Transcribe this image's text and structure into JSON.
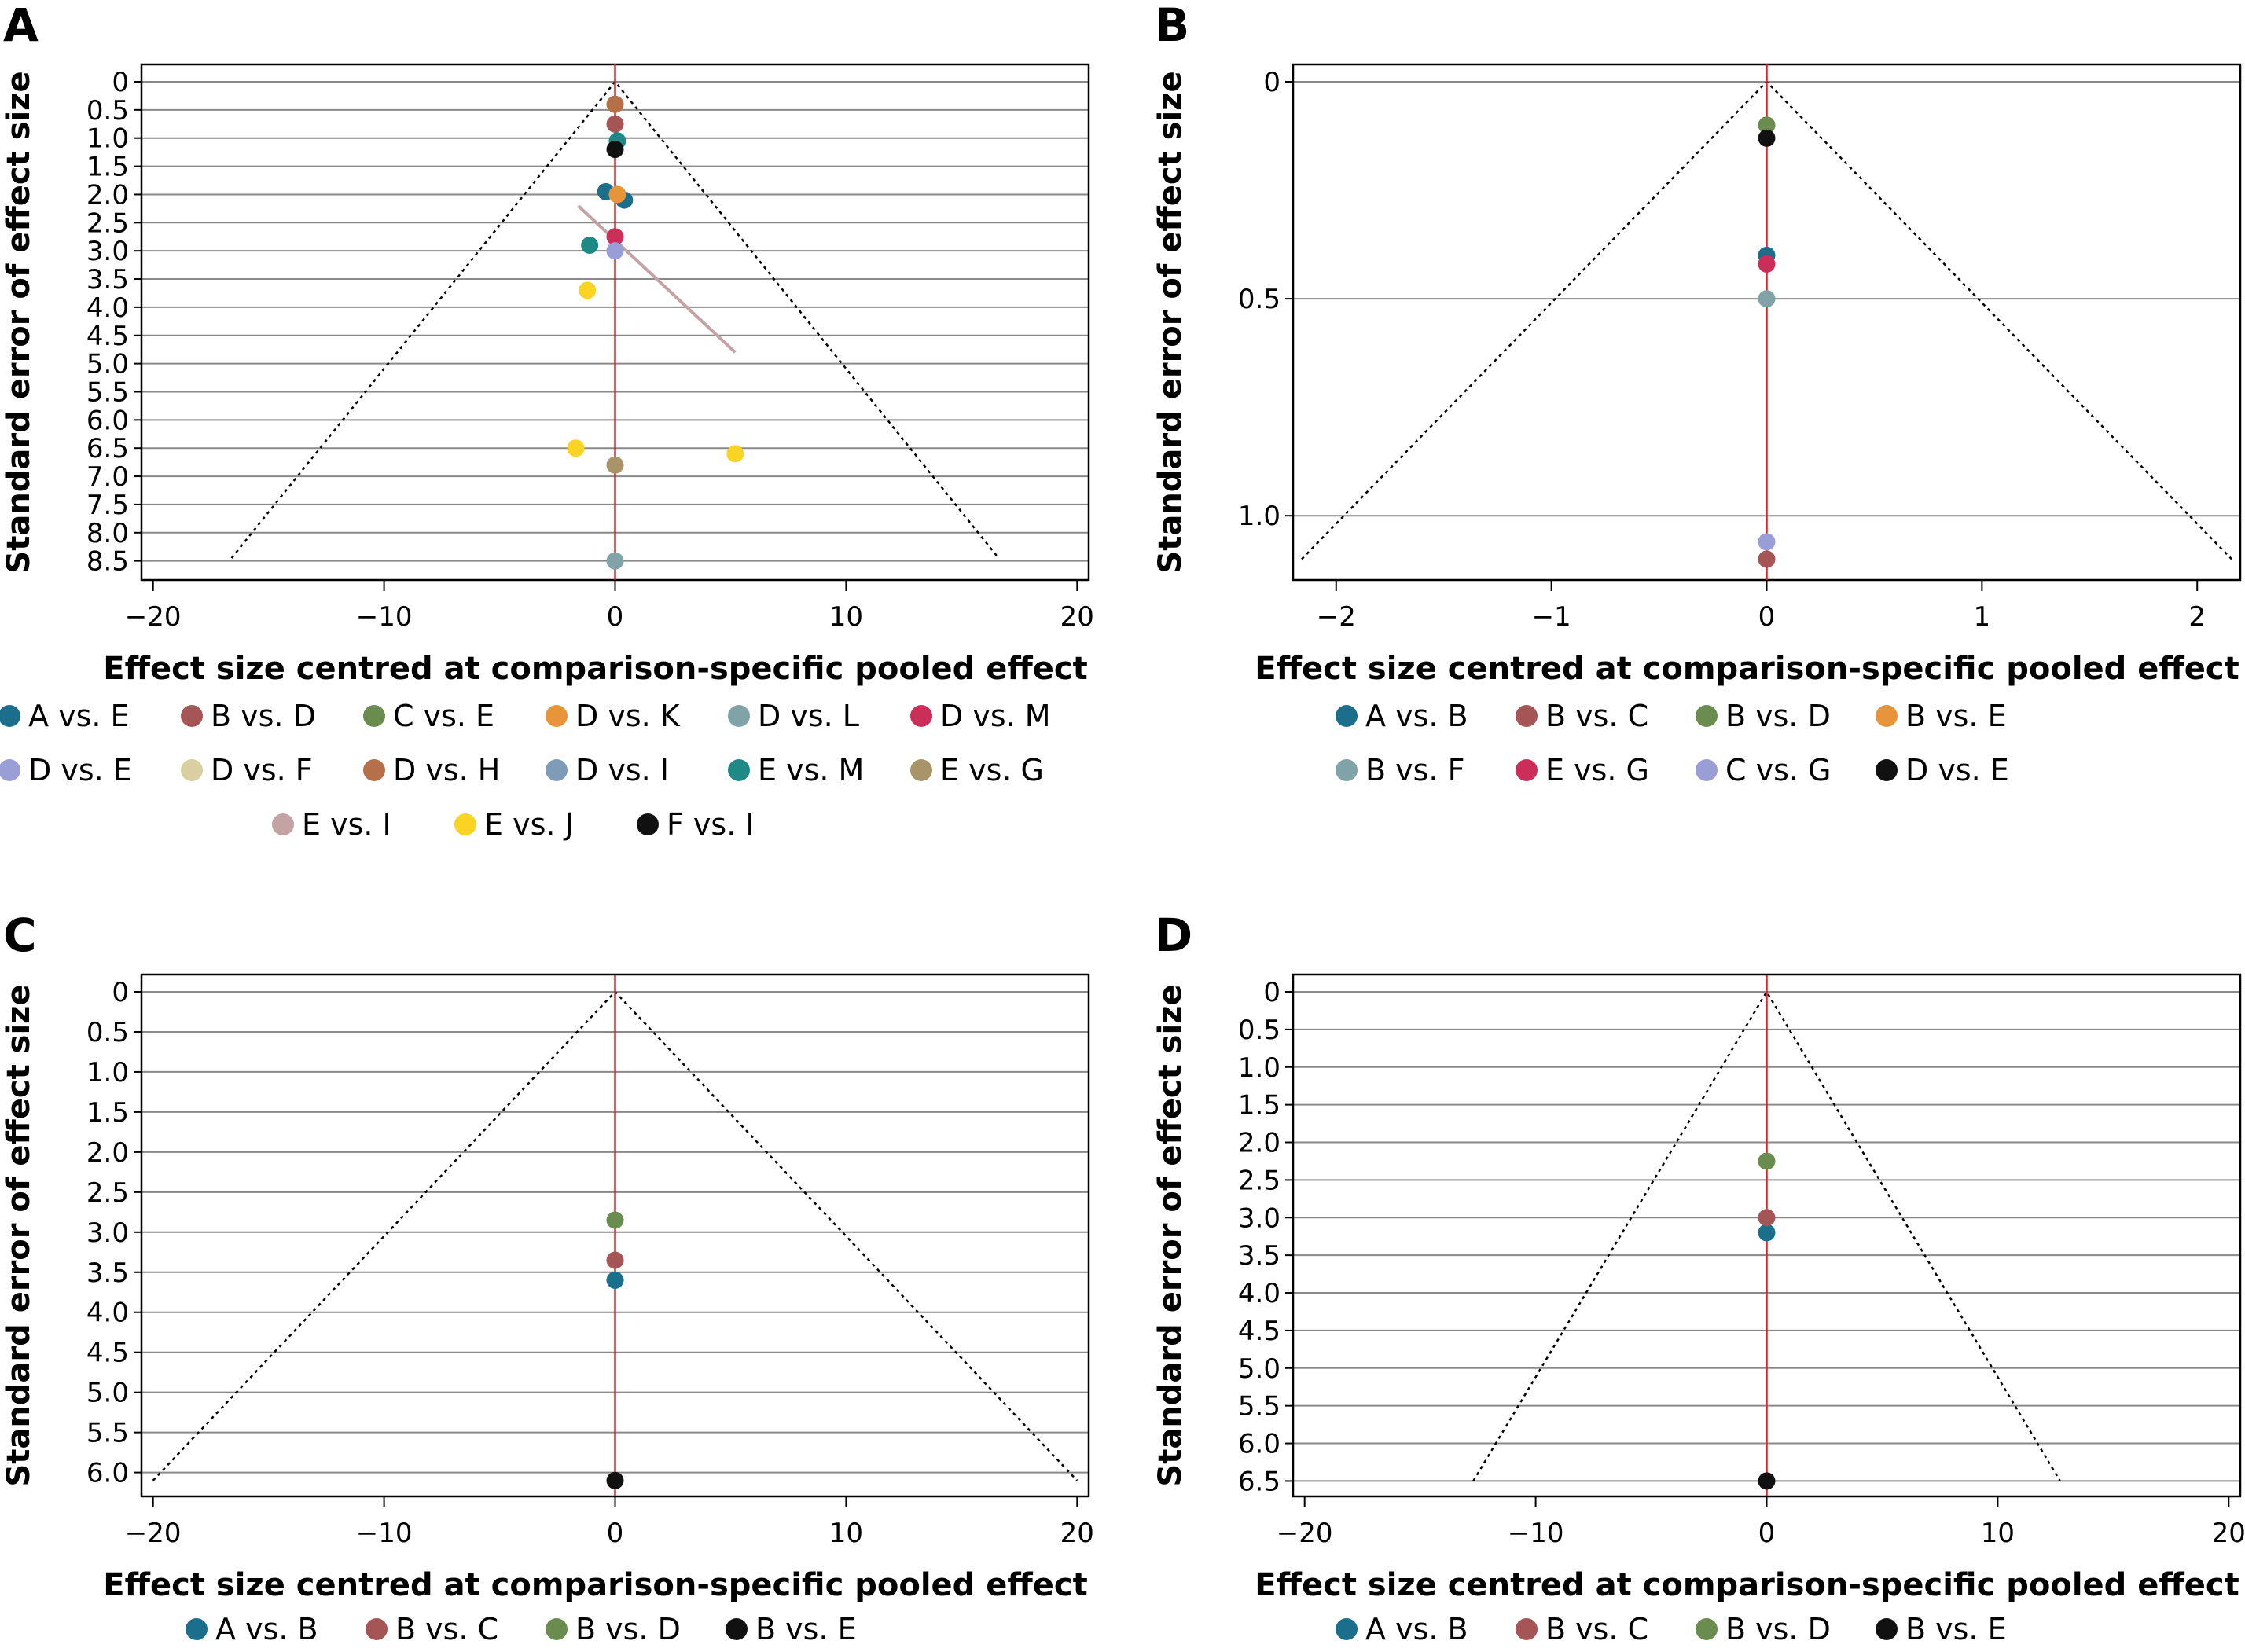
{
  "figure": {
    "panels": [
      "A",
      "B",
      "C",
      "D"
    ]
  },
  "chart_data": [
    {
      "panel": "A",
      "type": "scatter",
      "xlabel": "Effect size centred at comparison-specific pooled effect",
      "ylabel": "Standard error of effect size",
      "xlim": [
        -20.5,
        20.5
      ],
      "ylim": [
        0,
        8.7
      ],
      "y_inverted": true,
      "x_ticks": [
        -20,
        -10,
        0,
        10,
        20
      ],
      "x_tick_labels": [
        "−20",
        "−10",
        "0",
        "10",
        "20"
      ],
      "y_ticks": [
        0,
        0.5,
        1,
        1.5,
        2,
        2.5,
        3,
        3.5,
        4,
        4.5,
        5,
        5.5,
        6,
        6.5,
        7,
        7.5,
        8,
        8.5
      ],
      "y_tick_labels": [
        "0",
        "0.5",
        "1.0",
        "1.5",
        "2.0",
        "2.5",
        "3.0",
        "3.5",
        "4.0",
        "4.5",
        "5.0",
        "5.5",
        "6.0",
        "6.5",
        "7.0",
        "7.5",
        "8.0",
        "8.5"
      ],
      "grid": "horizontal",
      "funnel": {
        "apex": [
          0,
          0
        ],
        "bottom_se": 8.45,
        "half_width_at_bottom": 16.6
      },
      "reference_line_x": 0,
      "regression_line": {
        "from": [
          -1.6,
          2.2
        ],
        "to": [
          5.2,
          4.8
        ],
        "color": "#C4A3A5"
      },
      "legend": {
        "position": "bottom",
        "columns": 6
      },
      "series": [
        {
          "name": "A vs. E",
          "color": "#1B6E8C",
          "points": [
            [
              -0.4,
              1.95
            ],
            [
              0.4,
              2.1
            ]
          ]
        },
        {
          "name": "B vs. D",
          "color": "#A65556",
          "points": [
            [
              0,
              0.75
            ]
          ]
        },
        {
          "name": "C vs. E",
          "color": "#6A8C4F",
          "points": []
        },
        {
          "name": "D vs. K",
          "color": "#E8943A",
          "points": [
            [
              0.1,
              2.0
            ]
          ]
        },
        {
          "name": "D vs. L",
          "color": "#7FA3A7",
          "points": [
            [
              0,
              8.5
            ]
          ]
        },
        {
          "name": "D vs. M",
          "color": "#CC2E5A",
          "points": [
            [
              0,
              2.75
            ]
          ]
        },
        {
          "name": "D vs. E",
          "color": "#9A9ED6",
          "points": [
            [
              0,
              3.0
            ]
          ]
        },
        {
          "name": "D vs. F",
          "color": "#D9CFA0",
          "points": []
        },
        {
          "name": "D vs. H",
          "color": "#B5704A",
          "points": [
            [
              0,
              0.4
            ]
          ]
        },
        {
          "name": "D vs. I",
          "color": "#7E9CB8",
          "points": []
        },
        {
          "name": "E vs. M",
          "color": "#1F8A85",
          "points": [
            [
              0.1,
              1.05
            ],
            [
              -1.1,
              2.9
            ]
          ]
        },
        {
          "name": "E vs. G",
          "color": "#A89468",
          "points": [
            [
              0,
              6.8
            ]
          ]
        },
        {
          "name": "E vs. I",
          "color": "#C4A3A5",
          "points": []
        },
        {
          "name": "E vs. J",
          "color": "#F9D423",
          "points": [
            [
              -1.2,
              3.7
            ],
            [
              -1.7,
              6.5
            ],
            [
              5.2,
              6.6
            ]
          ]
        },
        {
          "name": "F vs. I",
          "color": "#111111",
          "points": [
            [
              0,
              1.2
            ]
          ]
        }
      ]
    },
    {
      "panel": "B",
      "type": "scatter",
      "xlabel": "Effect size centred at comparison-specific pooled effect",
      "ylabel": "Standard error of effect size",
      "xlim": [
        -2.2,
        2.2
      ],
      "ylim": [
        0,
        1.13
      ],
      "y_inverted": true,
      "x_ticks": [
        -2,
        -1,
        0,
        1,
        2
      ],
      "x_tick_labels": [
        "−2",
        "−1",
        "0",
        "1",
        "2"
      ],
      "y_ticks": [
        0,
        0.5,
        1
      ],
      "y_tick_labels": [
        "0",
        "0.5",
        "1.0"
      ],
      "grid": "horizontal",
      "funnel": {
        "apex": [
          0,
          0
        ],
        "bottom_se": 1.1,
        "half_width_at_bottom": 2.16
      },
      "reference_line_x": 0,
      "legend": {
        "position": "bottom",
        "columns": 4
      },
      "series": [
        {
          "name": "A vs. B",
          "color": "#1B6E8C",
          "points": [
            [
              0,
              0.4
            ]
          ]
        },
        {
          "name": "B vs. C",
          "color": "#A65556",
          "points": [
            [
              0,
              1.1
            ]
          ]
        },
        {
          "name": "B vs. D",
          "color": "#6A8C4F",
          "points": [
            [
              0,
              0.1
            ]
          ]
        },
        {
          "name": "B vs. E",
          "color": "#E8943A",
          "points": []
        },
        {
          "name": "B vs. F",
          "color": "#7FA3A7",
          "points": [
            [
              0,
              0.5
            ]
          ]
        },
        {
          "name": "E vs. G",
          "color": "#CC2E5A",
          "points": [
            [
              0,
              0.42
            ]
          ]
        },
        {
          "name": "C vs. G",
          "color": "#9A9ED6",
          "points": [
            [
              0,
              1.06
            ]
          ]
        },
        {
          "name": "D vs. E",
          "color": "#111111",
          "points": [
            [
              0,
              0.13
            ]
          ]
        }
      ]
    },
    {
      "panel": "C",
      "type": "scatter",
      "xlabel": "Effect size centred at comparison-specific pooled effect",
      "ylabel": "Standard error of effect size",
      "xlim": [
        -20.5,
        20.5
      ],
      "ylim": [
        0,
        6.2
      ],
      "y_inverted": true,
      "x_ticks": [
        -20,
        -10,
        0,
        10,
        20
      ],
      "x_tick_labels": [
        "−20",
        "−10",
        "0",
        "10",
        "20"
      ],
      "y_ticks": [
        0,
        0.5,
        1,
        1.5,
        2,
        2.5,
        3,
        3.5,
        4,
        4.5,
        5,
        5.5,
        6
      ],
      "y_tick_labels": [
        "0",
        "0.5",
        "1.0",
        "1.5",
        "2.0",
        "2.5",
        "3.0",
        "3.5",
        "4.0",
        "4.5",
        "5.0",
        "5.5",
        "6.0"
      ],
      "grid": "horizontal",
      "funnel": {
        "apex": [
          0,
          0
        ],
        "bottom_se": 6.1,
        "half_width_at_bottom": 20
      },
      "reference_line_x": 0,
      "legend": {
        "position": "bottom",
        "columns": 4
      },
      "series": [
        {
          "name": "A vs. B",
          "color": "#1B6E8C",
          "points": [
            [
              0,
              3.6
            ]
          ]
        },
        {
          "name": "B vs. C",
          "color": "#A65556",
          "points": [
            [
              0,
              3.35
            ]
          ]
        },
        {
          "name": "B vs. D",
          "color": "#6A8C4F",
          "points": [
            [
              0,
              2.85
            ]
          ]
        },
        {
          "name": "B vs. E",
          "color": "#111111",
          "points": [
            [
              0,
              6.1
            ]
          ]
        }
      ]
    },
    {
      "panel": "D",
      "type": "scatter",
      "xlabel": "Effect size centred at comparison-specific pooled effect",
      "ylabel": "Standard error of effect size",
      "xlim": [
        -20.5,
        20.5
      ],
      "ylim": [
        0,
        6.6
      ],
      "y_inverted": true,
      "x_ticks": [
        -20,
        -10,
        0,
        10,
        20
      ],
      "x_tick_labels": [
        "−20",
        "−10",
        "0",
        "10",
        "20"
      ],
      "y_ticks": [
        0,
        0.5,
        1,
        1.5,
        2,
        2.5,
        3,
        3.5,
        4,
        4.5,
        5,
        5.5,
        6,
        6.5
      ],
      "y_tick_labels": [
        "0",
        "0.5",
        "1.0",
        "1.5",
        "2.0",
        "2.5",
        "3.0",
        "3.5",
        "4.0",
        "4.5",
        "5.0",
        "5.5",
        "6.0",
        "6.5"
      ],
      "grid": "horizontal",
      "funnel": {
        "apex": [
          0,
          0
        ],
        "bottom_se": 6.5,
        "half_width_at_bottom": 12.7
      },
      "reference_line_x": 0,
      "legend": {
        "position": "bottom",
        "columns": 4
      },
      "series": [
        {
          "name": "A vs. B",
          "color": "#1B6E8C",
          "points": [
            [
              0,
              3.2
            ]
          ]
        },
        {
          "name": "B vs. C",
          "color": "#A65556",
          "points": [
            [
              0,
              3.0
            ]
          ]
        },
        {
          "name": "B vs. D",
          "color": "#6A8C4F",
          "points": [
            [
              0,
              2.25
            ]
          ]
        },
        {
          "name": "B vs. E",
          "color": "#111111",
          "points": [
            [
              0,
              6.5
            ]
          ]
        }
      ]
    }
  ]
}
